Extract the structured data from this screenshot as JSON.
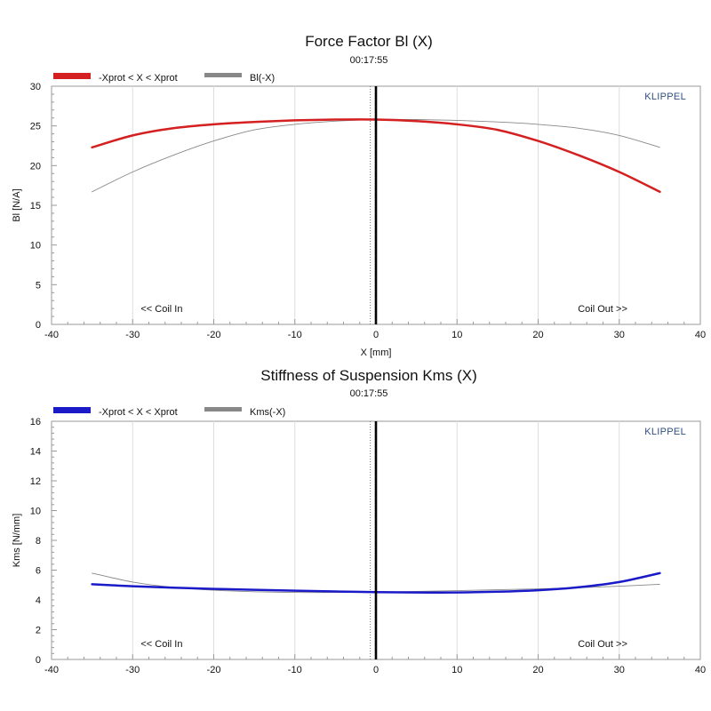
{
  "chart_data": [
    {
      "type": "line",
      "title": "Force Factor Bl (X)",
      "subtitle": "00:17:55",
      "brand": "KLIPPEL",
      "xlabel": "X [mm]",
      "ylabel": "Bl [N/A]",
      "xlim": [
        -40,
        40
      ],
      "ylim": [
        0,
        30
      ],
      "xticks": [
        -40,
        -30,
        -20,
        -10,
        0,
        10,
        20,
        30,
        40
      ],
      "yticks": [
        0,
        5,
        10,
        15,
        20,
        25,
        30
      ],
      "grid": true,
      "legend_position": "top-left",
      "annotations": {
        "left": "<< Coil In",
        "right": "Coil Out >>"
      },
      "zero_line": 0,
      "series": [
        {
          "name": "-Xprot < X < Xprot",
          "color": "#d42020",
          "x": [
            -35,
            -30,
            -25,
            -20,
            -15,
            -10,
            -5,
            0,
            5,
            10,
            15,
            20,
            25,
            30,
            35
          ],
          "y": [
            22.3,
            23.8,
            24.7,
            25.2,
            25.5,
            25.7,
            25.8,
            25.8,
            25.6,
            25.2,
            24.5,
            23.1,
            21.3,
            19.2,
            16.7
          ]
        },
        {
          "name": "Bl(-X)",
          "color": "#888888",
          "x": [
            -35,
            -30,
            -25,
            -20,
            -15,
            -10,
            -5,
            0,
            5,
            10,
            15,
            20,
            25,
            30,
            35
          ],
          "y": [
            16.7,
            19.2,
            21.3,
            23.1,
            24.5,
            25.2,
            25.6,
            25.8,
            25.8,
            25.7,
            25.5,
            25.2,
            24.7,
            23.8,
            22.3
          ]
        }
      ]
    },
    {
      "type": "line",
      "title": "Stiffness of Suspension Kms (X)",
      "subtitle": "00:17:55",
      "brand": "KLIPPEL",
      "xlabel": "",
      "ylabel": "Kms [N/mm]",
      "xlim": [
        -40,
        40
      ],
      "ylim": [
        0,
        16
      ],
      "xticks": [
        -40,
        -30,
        -20,
        -10,
        0,
        10,
        20,
        30,
        40
      ],
      "yticks": [
        0,
        2,
        4,
        6,
        8,
        10,
        12,
        14,
        16
      ],
      "grid": true,
      "legend_position": "top-left",
      "annotations": {
        "left": "<< Coil In",
        "right": "Coil Out >>"
      },
      "zero_line": 0,
      "series": [
        {
          "name": "-Xprot < X < Xprot",
          "color": "#1a1ac8",
          "x": [
            -35,
            -30,
            -25,
            -20,
            -15,
            -10,
            -5,
            0,
            5,
            10,
            15,
            20,
            25,
            30,
            35
          ],
          "y": [
            5.05,
            4.92,
            4.82,
            4.74,
            4.68,
            4.62,
            4.57,
            4.52,
            4.5,
            4.5,
            4.55,
            4.65,
            4.85,
            5.2,
            5.8
          ]
        },
        {
          "name": "Kms(-X)",
          "color": "#888888",
          "x": [
            -35,
            -30,
            -25,
            -20,
            -15,
            -10,
            -5,
            0,
            5,
            10,
            15,
            20,
            25,
            30,
            35
          ],
          "y": [
            5.8,
            5.2,
            4.85,
            4.65,
            4.55,
            4.5,
            4.5,
            4.52,
            4.57,
            4.62,
            4.68,
            4.74,
            4.82,
            4.92,
            5.05
          ]
        }
      ]
    }
  ]
}
